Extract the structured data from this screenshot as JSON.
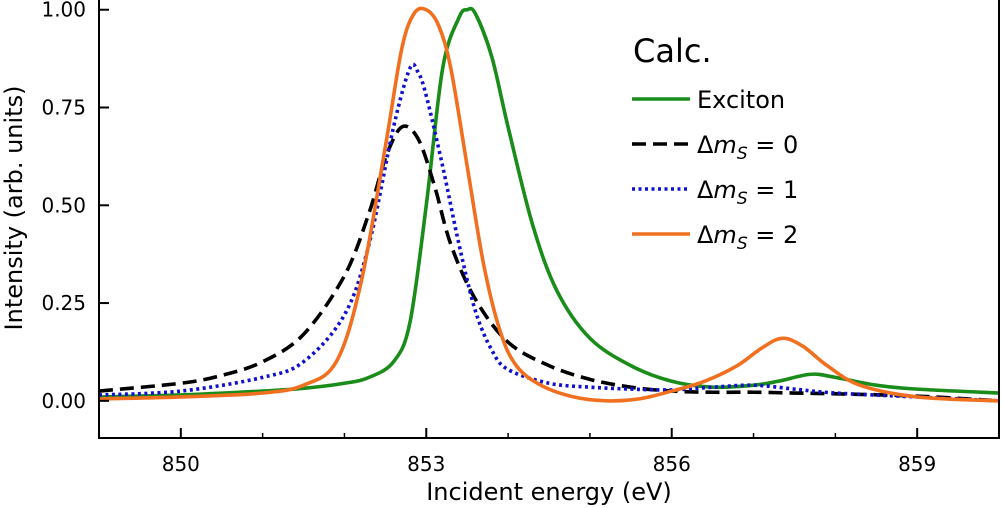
{
  "chart_data": {
    "type": "line",
    "xlabel": "Incident energy (eV)",
    "ylabel": "Intensity (arb. units)",
    "xlim": [
      849.0,
      860.0
    ],
    "ylim": [
      -0.095,
      1.03
    ],
    "xticks": [
      850,
      853,
      856,
      859
    ],
    "xtick_labels": [
      "850",
      "853",
      "856",
      "859"
    ],
    "yticks": [
      0.0,
      0.25,
      0.5,
      0.75,
      1.0
    ],
    "ytick_labels": [
      "0.00",
      "0.25",
      "0.50",
      "0.75",
      "1.00"
    ],
    "grid": false,
    "legend": {
      "title": "Calc.",
      "position": "top-right",
      "entries": [
        {
          "symbol": "",
          "subscript": "",
          "equals": "",
          "text": "Exciton",
          "series": 0
        },
        {
          "symbol": "Δ",
          "var": "m",
          "subscript": "S",
          "equals": " = ",
          "text": "0",
          "series": 1
        },
        {
          "symbol": "Δ",
          "var": "m",
          "subscript": "S",
          "equals": " = ",
          "text": "1",
          "series": 2
        },
        {
          "symbol": "Δ",
          "var": "m",
          "subscript": "S",
          "equals": " = ",
          "text": "2",
          "series": 3
        }
      ]
    },
    "series": [
      {
        "name": "Exciton",
        "color": "#1a8c1a",
        "dash": "solid",
        "x": [
          849.0,
          850.0,
          851.0,
          851.5,
          852.0,
          852.3,
          852.6,
          852.8,
          853.0,
          853.2,
          853.4,
          853.5,
          853.6,
          853.8,
          854.0,
          854.3,
          854.6,
          855.0,
          855.5,
          856.0,
          856.5,
          857.0,
          857.3,
          857.7,
          858.0,
          858.5,
          859.0,
          860.0
        ],
        "y": [
          0.01,
          0.015,
          0.025,
          0.032,
          0.045,
          0.06,
          0.1,
          0.2,
          0.5,
          0.85,
          0.98,
          1.0,
          0.99,
          0.88,
          0.7,
          0.45,
          0.28,
          0.16,
          0.09,
          0.05,
          0.035,
          0.04,
          0.05,
          0.068,
          0.06,
          0.04,
          0.03,
          0.02
        ]
      },
      {
        "name": "Δm_S = 0",
        "color": "#000000",
        "dash": "dashed",
        "x": [
          849.0,
          850.0,
          850.5,
          851.0,
          851.5,
          852.0,
          852.3,
          852.5,
          852.7,
          852.9,
          853.1,
          853.3,
          853.6,
          854.0,
          854.5,
          855.0,
          855.5,
          856.0,
          856.5,
          857.0,
          857.5,
          858.0,
          859.0,
          860.0
        ],
        "y": [
          0.025,
          0.045,
          0.065,
          0.1,
          0.17,
          0.32,
          0.48,
          0.62,
          0.7,
          0.67,
          0.55,
          0.4,
          0.26,
          0.15,
          0.09,
          0.055,
          0.035,
          0.025,
          0.022,
          0.022,
          0.02,
          0.018,
          0.012,
          0.0
        ]
      },
      {
        "name": "Δm_S = 1",
        "color": "#1010d0",
        "dash": "dotted",
        "x": [
          849.0,
          850.0,
          851.0,
          851.5,
          852.0,
          852.3,
          852.6,
          852.8,
          852.9,
          853.0,
          853.2,
          853.4,
          853.6,
          853.8,
          854.0,
          854.5,
          855.0,
          855.5,
          856.0,
          856.5,
          857.0,
          857.5,
          858.0,
          859.0,
          860.0
        ],
        "y": [
          0.015,
          0.025,
          0.06,
          0.1,
          0.22,
          0.4,
          0.7,
          0.85,
          0.84,
          0.78,
          0.6,
          0.4,
          0.23,
          0.13,
          0.08,
          0.045,
          0.035,
          0.03,
          0.028,
          0.035,
          0.04,
          0.03,
          0.02,
          0.01,
          0.0
        ]
      },
      {
        "name": "Δm_S = 2",
        "color": "#f07020",
        "dash": "solid",
        "x": [
          849.0,
          850.0,
          851.0,
          851.5,
          851.9,
          852.2,
          852.5,
          852.7,
          852.85,
          853.0,
          853.15,
          853.3,
          853.5,
          853.7,
          853.9,
          854.1,
          854.4,
          854.8,
          855.2,
          855.6,
          856.0,
          856.4,
          856.8,
          857.1,
          857.35,
          857.6,
          857.9,
          858.3,
          859.0,
          860.0
        ],
        "y": [
          0.005,
          0.01,
          0.02,
          0.04,
          0.1,
          0.3,
          0.65,
          0.9,
          0.99,
          1.0,
          0.96,
          0.85,
          0.6,
          0.35,
          0.18,
          0.09,
          0.04,
          0.01,
          0.0,
          0.005,
          0.025,
          0.05,
          0.09,
          0.135,
          0.16,
          0.14,
          0.09,
          0.04,
          0.01,
          0.0
        ]
      }
    ]
  }
}
